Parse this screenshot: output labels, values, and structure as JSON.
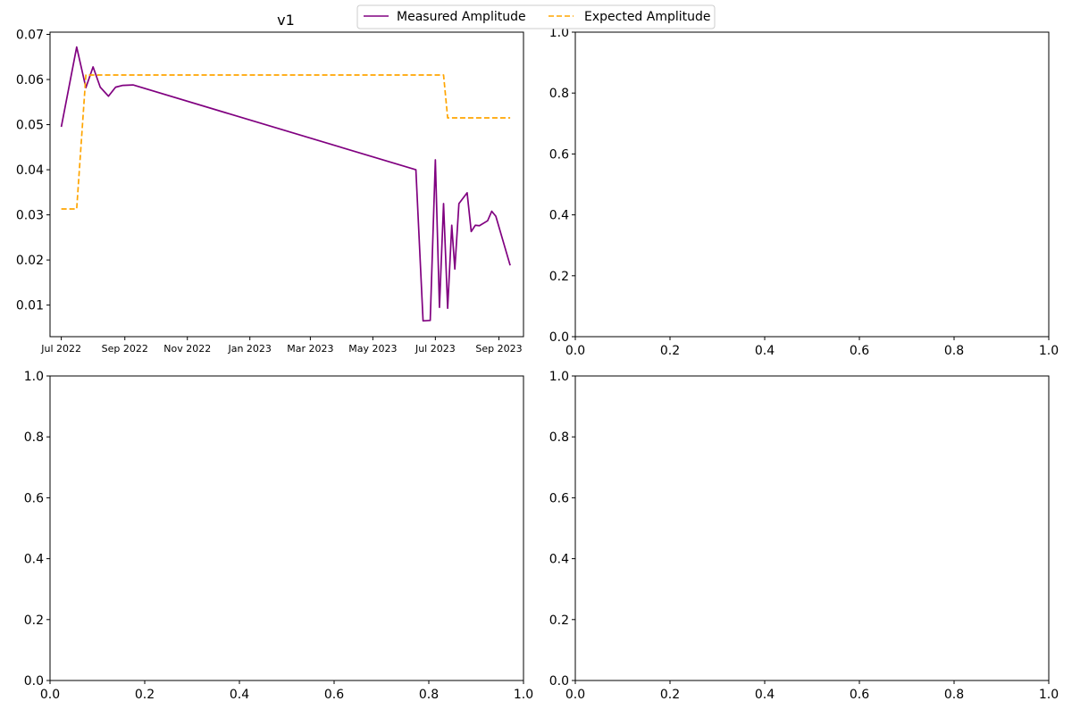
{
  "chart_data": [
    {
      "type": "line",
      "title": "v1",
      "xlabel": "",
      "ylabel": "",
      "x_axis": "date",
      "xlim": [
        "2022-06-20",
        "2023-09-25"
      ],
      "ylim": [
        0.003,
        0.0705
      ],
      "x_ticks": [
        "2022-07-01",
        "2022-09-01",
        "2022-11-01",
        "2023-01-01",
        "2023-03-01",
        "2023-05-01",
        "2023-07-01",
        "2023-09-01"
      ],
      "x_tick_labels": [
        "Jul 2022",
        "Sep 2022",
        "Nov 2022",
        "Jan 2023",
        "Mar 2023",
        "May 2023",
        "Jul 2023",
        "Sep 2023"
      ],
      "y_ticks": [
        0.01,
        0.02,
        0.03,
        0.04,
        0.05,
        0.06,
        0.07
      ],
      "y_tick_labels": [
        "0.01",
        "0.02",
        "0.03",
        "0.04",
        "0.05",
        "0.06",
        "0.07"
      ],
      "grid": false,
      "series": [
        {
          "name": "Measured Amplitude",
          "color": "#800080",
          "style": "solid",
          "points": [
            [
              "2022-07-01",
              0.0495
            ],
            [
              "2022-07-16",
              0.0672
            ],
            [
              "2022-07-25",
              0.0582
            ],
            [
              "2022-08-01",
              0.0628
            ],
            [
              "2022-08-08",
              0.0583
            ],
            [
              "2022-08-16",
              0.0563
            ],
            [
              "2022-08-23",
              0.0583
            ],
            [
              "2022-08-30",
              0.0587
            ],
            [
              "2022-09-09",
              0.0588
            ],
            [
              "2023-06-12",
              0.04
            ],
            [
              "2023-06-19",
              0.0065
            ],
            [
              "2023-06-26",
              0.0066
            ],
            [
              "2023-07-01",
              0.0422
            ],
            [
              "2023-07-05",
              0.0095
            ],
            [
              "2023-07-09",
              0.0325
            ],
            [
              "2023-07-13",
              0.0093
            ],
            [
              "2023-07-17",
              0.0277
            ],
            [
              "2023-07-20",
              0.018
            ],
            [
              "2023-07-24",
              0.0325
            ],
            [
              "2023-08-01",
              0.0349
            ],
            [
              "2023-08-05",
              0.0263
            ],
            [
              "2023-08-09",
              0.0277
            ],
            [
              "2023-08-13",
              0.0276
            ],
            [
              "2023-08-21",
              0.0287
            ],
            [
              "2023-08-25",
              0.0308
            ],
            [
              "2023-08-29",
              0.0297
            ],
            [
              "2023-09-12",
              0.0188
            ]
          ]
        },
        {
          "name": "Expected Amplitude",
          "color": "#ffa500",
          "style": "dashed",
          "points": [
            [
              "2022-07-01",
              0.0313
            ],
            [
              "2022-07-16",
              0.0313
            ],
            [
              "2022-07-25",
              0.061
            ],
            [
              "2023-07-09",
              0.061
            ],
            [
              "2023-07-13",
              0.0515
            ],
            [
              "2023-09-12",
              0.0515
            ]
          ]
        }
      ]
    },
    {
      "type": "line",
      "title": "",
      "xlim": [
        0,
        1
      ],
      "ylim": [
        0,
        1
      ],
      "x_tick_labels": [
        "0.0",
        "0.2",
        "0.4",
        "0.6",
        "0.8",
        "1.0"
      ],
      "y_tick_labels": [
        "0.0",
        "0.2",
        "0.4",
        "0.6",
        "0.8",
        "1.0"
      ],
      "series": []
    },
    {
      "type": "line",
      "title": "",
      "xlim": [
        0,
        1
      ],
      "ylim": [
        0,
        1
      ],
      "x_tick_labels": [
        "0.0",
        "0.2",
        "0.4",
        "0.6",
        "0.8",
        "1.0"
      ],
      "y_tick_labels": [
        "0.0",
        "0.2",
        "0.4",
        "0.6",
        "0.8",
        "1.0"
      ],
      "series": []
    },
    {
      "type": "line",
      "title": "",
      "xlim": [
        0,
        1
      ],
      "ylim": [
        0,
        1
      ],
      "x_tick_labels": [
        "0.0",
        "0.2",
        "0.4",
        "0.6",
        "0.8",
        "1.0"
      ],
      "y_tick_labels": [
        "0.0",
        "0.2",
        "0.4",
        "0.6",
        "0.8",
        "1.0"
      ],
      "series": []
    }
  ],
  "legend": {
    "placement": "top-center",
    "entries": [
      "Measured Amplitude",
      "Expected Amplitude"
    ]
  }
}
